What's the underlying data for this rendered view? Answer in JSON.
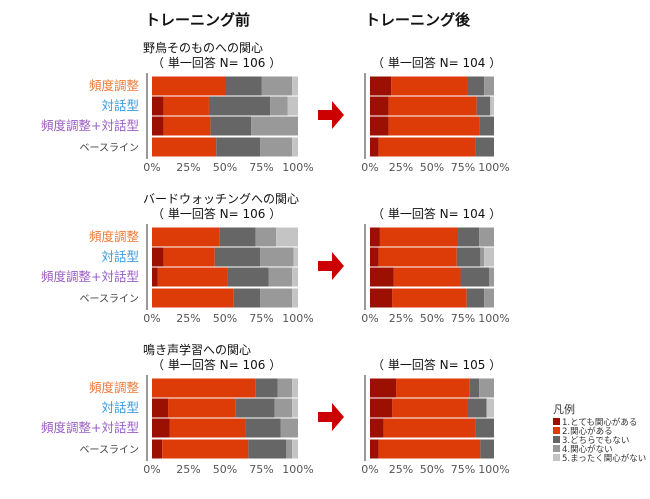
{
  "headers": {
    "before": "トレーニング前",
    "after": "トレーニング後"
  },
  "row_labels": [
    {
      "text": "頻度調整",
      "color": "#f07a38"
    },
    {
      "text": "対話型",
      "color": "#3a9ad9"
    },
    {
      "text": "頻度調整+対話型",
      "color": "#9a5cc4"
    },
    {
      "text": "ベースライン",
      "color": "#444444"
    }
  ],
  "colors": [
    "#9b1000",
    "#dd3b08",
    "#666666",
    "#999999",
    "#c4c4c4"
  ],
  "arrow_color": "#cc0000",
  "legend": {
    "title": "凡例",
    "items": [
      "1.とても関心がある",
      "2.関心がある",
      "3.どちらでもない",
      "4.関心がない",
      "5.まったく関心がない"
    ]
  },
  "chart_data": [
    {
      "type": "bar",
      "orientation": "horizontal",
      "stacked": true,
      "panel": "before",
      "title": "野鳥そのものへの関心",
      "subtitle": "（ 単一回答 N= 106 ）",
      "categories": [
        "頻度調整",
        "対話型",
        "頻度調整+対話型",
        "ベースライン"
      ],
      "xlim": [
        0,
        100
      ],
      "xticks": [
        "0%",
        "25%",
        "50%",
        "75%",
        "100%"
      ],
      "values": [
        [
          0,
          50,
          25,
          21,
          4
        ],
        [
          8,
          31,
          42,
          12,
          7
        ],
        [
          8,
          32,
          28,
          32,
          0
        ],
        [
          0,
          44,
          30,
          22,
          4
        ]
      ]
    },
    {
      "type": "bar",
      "orientation": "horizontal",
      "stacked": true,
      "panel": "after",
      "title": "",
      "subtitle": "（ 単一回答 N= 104 ）",
      "categories": [
        "頻度調整",
        "対話型",
        "頻度調整+対話型",
        "ベースライン"
      ],
      "xlim": [
        0,
        100
      ],
      "xticks": [
        "0%",
        "25%",
        "50%",
        "75%",
        "100%"
      ],
      "values": [
        [
          17,
          62,
          13,
          8,
          0
        ],
        [
          15,
          71,
          11,
          0,
          3
        ],
        [
          15,
          73,
          12,
          0,
          0
        ],
        [
          7,
          78,
          15,
          0,
          0
        ]
      ]
    },
    {
      "type": "bar",
      "orientation": "horizontal",
      "stacked": true,
      "panel": "before",
      "title": "バードウォッチングへの関心",
      "subtitle": "（ 単一回答 N= 106 ）",
      "categories": [
        "頻度調整",
        "対話型",
        "頻度調整+対話型",
        "ベースライン"
      ],
      "xlim": [
        0,
        100
      ],
      "xticks": [
        "0%",
        "25%",
        "50%",
        "75%",
        "100%"
      ],
      "values": [
        [
          0,
          46,
          25,
          14,
          15
        ],
        [
          8,
          35,
          31,
          23,
          3
        ],
        [
          4,
          48,
          28,
          16,
          4
        ],
        [
          0,
          56,
          18,
          22,
          4
        ]
      ]
    },
    {
      "type": "bar",
      "orientation": "horizontal",
      "stacked": true,
      "panel": "after",
      "title": "",
      "subtitle": "（ 単一回答 N= 104 ）",
      "categories": [
        "頻度調整",
        "対話型",
        "頻度調整+対話型",
        "ベースライン"
      ],
      "xlim": [
        0,
        100
      ],
      "xticks": [
        "0%",
        "25%",
        "50%",
        "75%",
        "100%"
      ],
      "values": [
        [
          8,
          63,
          17,
          12,
          0
        ],
        [
          7,
          63,
          19,
          3,
          8
        ],
        [
          19,
          54,
          23,
          4,
          0
        ],
        [
          18,
          60,
          14,
          8,
          0
        ]
      ]
    },
    {
      "type": "bar",
      "orientation": "horizontal",
      "stacked": true,
      "panel": "before",
      "title": "鳴き声学習への関心",
      "subtitle": "（ 単一回答 N= 106 ）",
      "categories": [
        "頻度調整",
        "対話型",
        "頻度調整+対話型",
        "ベースライン"
      ],
      "xlim": [
        0,
        100
      ],
      "xticks": [
        "0%",
        "25%",
        "50%",
        "75%",
        "100%"
      ],
      "values": [
        [
          0,
          71,
          15,
          10,
          4
        ],
        [
          11,
          46,
          27,
          12,
          4
        ],
        [
          12,
          52,
          24,
          12,
          0
        ],
        [
          7,
          59,
          26,
          4,
          4
        ]
      ]
    },
    {
      "type": "bar",
      "orientation": "horizontal",
      "stacked": true,
      "panel": "after",
      "title": "",
      "subtitle": "（ 単一回答 N= 105 ）",
      "categories": [
        "頻度調整",
        "対話型",
        "頻度調整+対話型",
        "ベースライン"
      ],
      "xlim": [
        0,
        100
      ],
      "xticks": [
        "0%",
        "25%",
        "50%",
        "75%",
        "100%"
      ],
      "values": [
        [
          21,
          59,
          8,
          12,
          0
        ],
        [
          18,
          61,
          15,
          0,
          6
        ],
        [
          11,
          74,
          15,
          0,
          0
        ],
        [
          7,
          82,
          11,
          0,
          0
        ]
      ]
    }
  ]
}
